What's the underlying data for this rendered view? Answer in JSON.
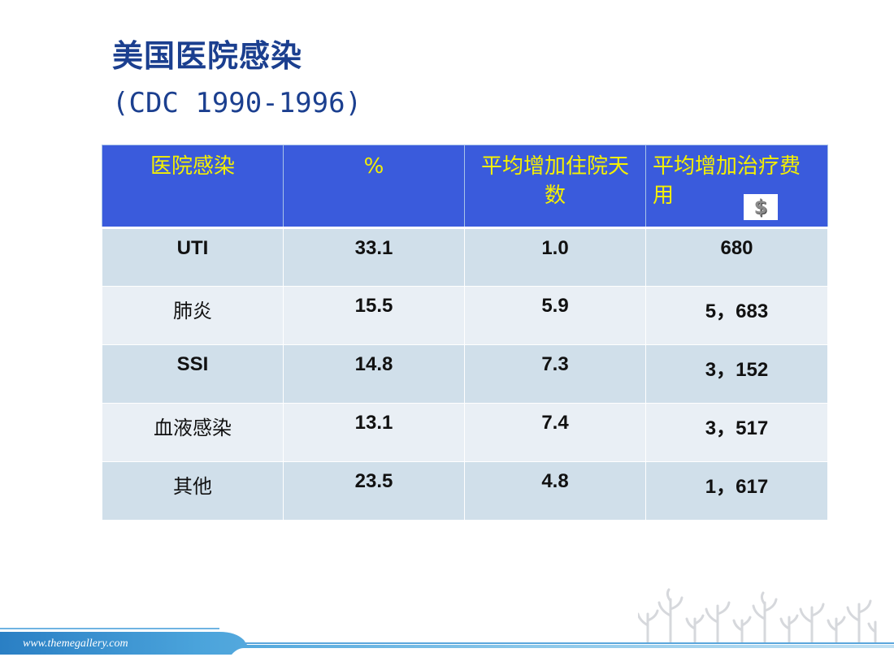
{
  "slide": {
    "title_line1": "美国医院感染",
    "title_line2": "(CDC 1990-1996)"
  },
  "table": {
    "headers": {
      "infection": "医院感染",
      "percent": "%",
      "extra_days": "平均增加住院天数",
      "extra_cost": "平均增加治疗费用"
    },
    "cost_icon": "dollar-icon",
    "cost_icon_glyph": "$",
    "rows": [
      {
        "infection": "UTI",
        "percent": "33.1",
        "days": "1.0",
        "cost": "680"
      },
      {
        "infection": "肺炎",
        "percent": "15.5",
        "days": "5.9",
        "cost": "5，683"
      },
      {
        "infection": "SSI",
        "percent": "14.8",
        "days": "7.3",
        "cost": "3，152"
      },
      {
        "infection": "血液感染",
        "percent": "13.1",
        "days": "7.4",
        "cost": "3，517"
      },
      {
        "infection": "其他",
        "percent": "23.5",
        "days": "4.8",
        "cost": "1，617"
      }
    ]
  },
  "footer": {
    "url": "www.themegallery.com"
  },
  "colors": {
    "title": "#1b3f8f",
    "header_bg": "#3a5bdc",
    "header_text": "#f5f000",
    "row_odd": "#d0dfea",
    "row_even": "#e9eff5",
    "footer_band": "#2e86c8"
  }
}
